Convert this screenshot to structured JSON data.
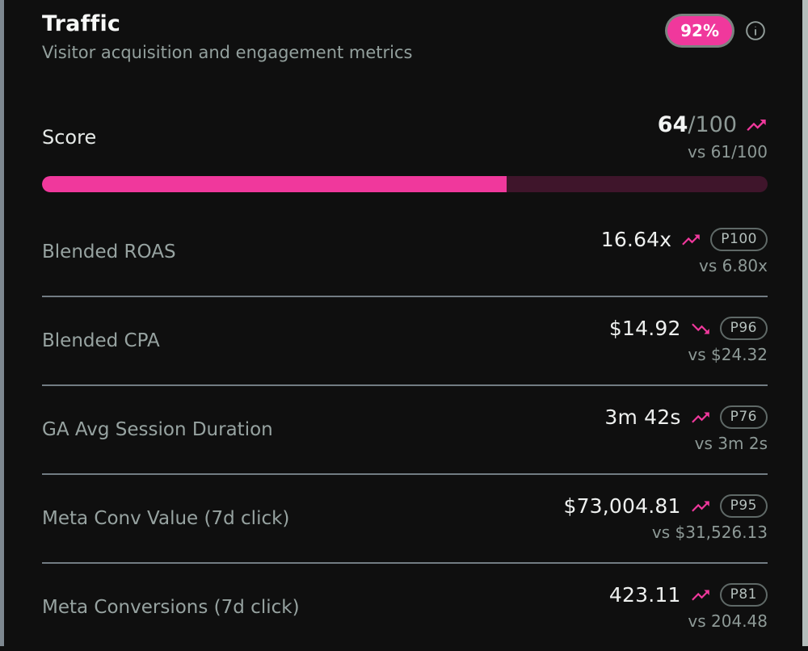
{
  "header": {
    "title": "Traffic",
    "subtitle": "Visitor acquisition and engagement metrics",
    "badge": "92%"
  },
  "score": {
    "label": "Score",
    "value": "64",
    "max": "/100",
    "vs": "vs 61/100",
    "trend": "up",
    "percent": 64
  },
  "metrics": [
    {
      "label": "Blended ROAS",
      "value": "16.64x",
      "trend": "up",
      "percentile": "P100",
      "vs": "vs 6.80x"
    },
    {
      "label": "Blended CPA",
      "value": "$14.92",
      "trend": "down",
      "percentile": "P96",
      "vs": "vs $24.32"
    },
    {
      "label": "GA Avg Session Duration",
      "value": "3m 42s",
      "trend": "up",
      "percentile": "P76",
      "vs": "vs 3m 2s"
    },
    {
      "label": "Meta Conv Value (7d click)",
      "value": "$73,004.81",
      "trend": "up",
      "percentile": "P95",
      "vs": "vs $31,526.13"
    },
    {
      "label": "Meta Conversions (7d click)",
      "value": "423.11",
      "trend": "up",
      "percentile": "P81",
      "vs": "vs 204.48"
    }
  ],
  "colors": {
    "accent_pink": "#f0389c",
    "progress_track": "#3f152b",
    "card_background": "#0f0f0f",
    "muted_text": "#8d9996",
    "divider": "#727c83"
  }
}
